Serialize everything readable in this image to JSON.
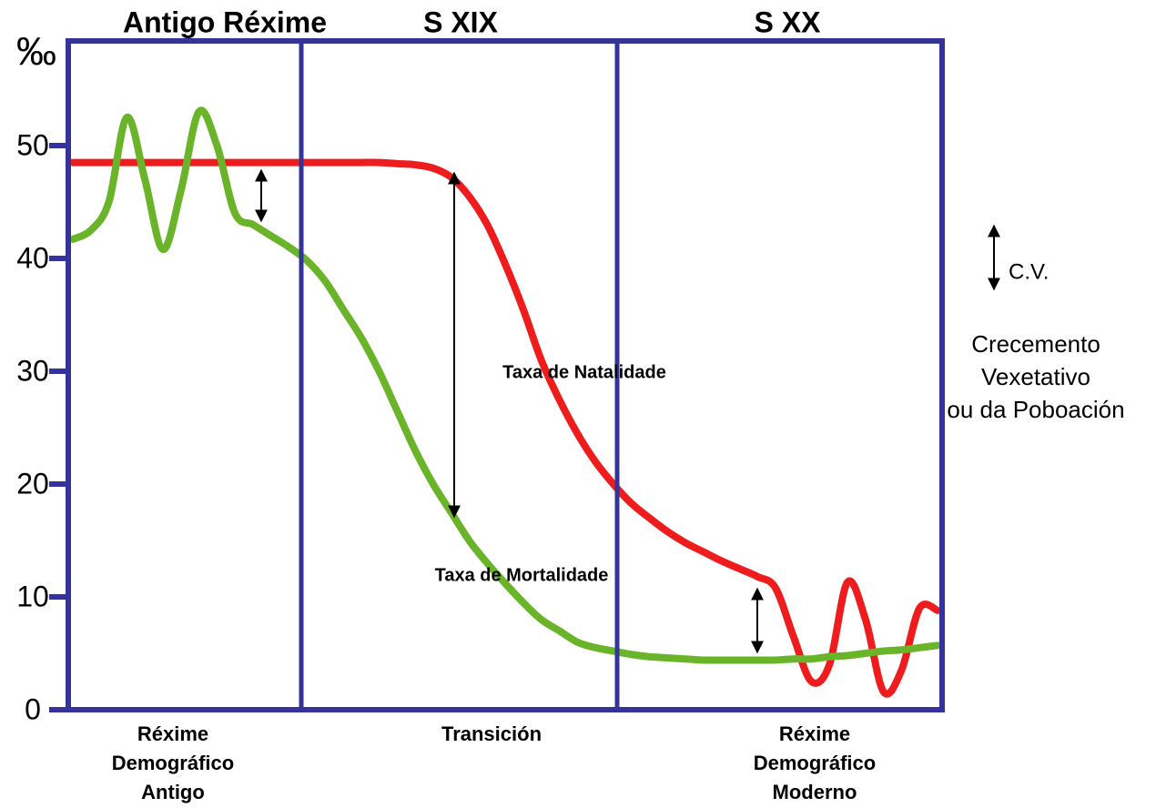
{
  "chart_data": {
    "type": "line",
    "ylabel": "‰",
    "ylim": [
      0,
      50
    ],
    "yticks": [
      0,
      10,
      20,
      30,
      40,
      50
    ],
    "eras": [
      "Antigo Réxime",
      "S XIX",
      "S XX"
    ],
    "phases": [
      [
        "Réxime",
        "Demográfico",
        "Antigo"
      ],
      [
        "Transición"
      ],
      [
        "Réxime",
        "Demográfico",
        "Moderno"
      ]
    ],
    "legend_note": {
      "label": "C.V.",
      "text": [
        "Crecemento",
        "Vexetativo",
        "ou da Poboación"
      ]
    },
    "categories": [
      null,
      null,
      null,
      null,
      null,
      null,
      null,
      null,
      null,
      null,
      null,
      null,
      null,
      null,
      null,
      null,
      null,
      null,
      null,
      null,
      null,
      null,
      null,
      null,
      null,
      null,
      null,
      null,
      null,
      null,
      null,
      null,
      null,
      null,
      null,
      null,
      null,
      null,
      null,
      null,
      null,
      null,
      null,
      null,
      null,
      null,
      null,
      null,
      null
    ],
    "series": [
      {
        "name": "Taxa de Natalidade",
        "color": "#ee1c1c",
        "values": [
          48.5,
          48.5,
          48.5,
          48.5,
          48.5,
          48.5,
          48.5,
          48.5,
          48.5,
          48.5,
          48.5,
          48.5,
          48.5,
          48.5,
          48.5,
          48.5,
          48.5,
          48.5,
          48.4,
          48.3,
          48,
          47.2,
          45.5,
          43,
          39.5,
          35.5,
          31,
          27.5,
          24.5,
          22,
          20,
          18.3,
          17,
          15.8,
          14.8,
          14,
          13.2,
          12.5,
          11.8,
          10.8,
          6.5,
          2.5,
          4,
          11.3,
          8,
          1.6,
          3.5,
          9,
          8.8
        ]
      },
      {
        "name": "Taxa de Mortalidade",
        "color": "#6ab42a",
        "values": [
          41.7,
          42.5,
          45,
          52.5,
          47,
          40.8,
          46,
          53,
          50,
          44,
          43,
          42,
          41,
          39.8,
          38,
          35.5,
          33,
          30,
          26.5,
          23,
          20,
          17.5,
          15,
          13,
          11.2,
          9.5,
          8,
          7,
          6,
          5.5,
          5.2,
          4.9,
          4.7,
          4.6,
          4.5,
          4.4,
          4.4,
          4.4,
          4.4,
          4.4,
          4.5,
          4.5,
          4.7,
          4.8,
          5,
          5.2,
          5.3,
          5.5,
          5.7
        ]
      }
    ]
  }
}
